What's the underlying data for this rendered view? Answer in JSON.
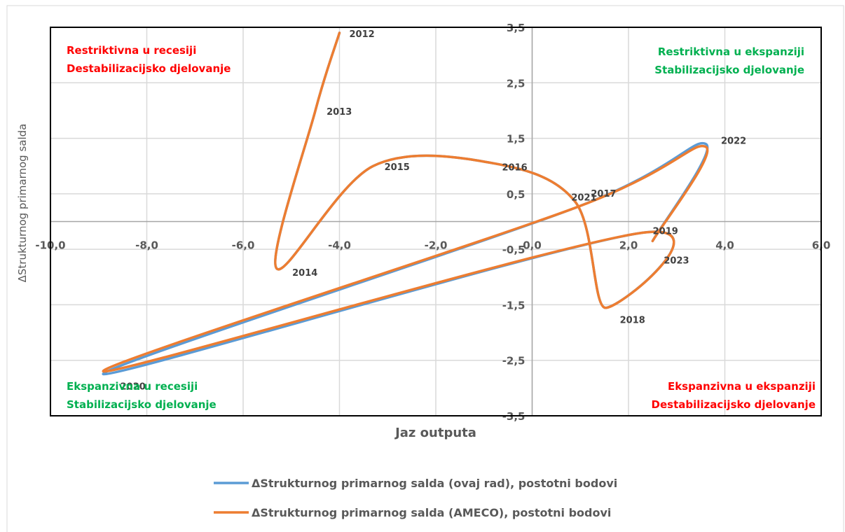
{
  "chart_data": {
    "type": "line",
    "title": "",
    "xlabel": "Jaz outputa",
    "ylabel": "ΔStrukturnog primarnog salda",
    "xlim": [
      -10,
      6
    ],
    "ylim": [
      -3.5,
      3.5
    ],
    "x_ticks": [
      "-10,0",
      "-8,0",
      "-6,0",
      "-4,0",
      "-2,0",
      "0,0",
      "2,0",
      "4,0",
      "6,0"
    ],
    "x_tick_values": [
      -10,
      -8,
      -6,
      -4,
      -2,
      0,
      2,
      4,
      6
    ],
    "y_ticks": [
      "3,5",
      "2,5",
      "1,5",
      "0,5",
      "-0,5",
      "-1,5",
      "-2,5",
      "-3,5"
    ],
    "y_tick_values": [
      3.5,
      2.5,
      1.5,
      0.5,
      -0.5,
      -1.5,
      -2.5,
      -3.5
    ],
    "grid": true,
    "legend_position": "bottom",
    "years": [
      "2012",
      "2013",
      "2014",
      "2015",
      "2016",
      "2017",
      "2018",
      "2019",
      "2020",
      "2021",
      "2022",
      "2023"
    ],
    "series": [
      {
        "name": "ΔStrukturnog primarnog salda (ovaj rad), postotni bodovi",
        "color": "#5B9BD5",
        "x": [
          -4.0,
          -4.5,
          -5.3,
          -3.3,
          -0.8,
          0.9,
          1.5,
          2.3,
          -8.9,
          0.9,
          3.6,
          2.5
        ],
        "y": [
          3.4,
          2.0,
          -0.85,
          1.0,
          1.05,
          0.35,
          -1.55,
          -0.2,
          -2.75,
          0.25,
          1.4,
          -0.35
        ]
      },
      {
        "name": "ΔStrukturnog primarnog salda (AMECO), postotni bodovi",
        "color": "#ED7D31",
        "x": [
          -4.0,
          -4.5,
          -5.3,
          -3.3,
          -0.8,
          0.9,
          1.5,
          2.3,
          -8.9,
          0.9,
          3.6,
          2.5
        ],
        "y": [
          3.4,
          2.0,
          -0.85,
          1.0,
          1.05,
          0.35,
          -1.55,
          -0.2,
          -2.7,
          0.25,
          1.35,
          -0.35
        ]
      }
    ],
    "quadrants": [
      {
        "id": "tl",
        "line1": "Restriktivna u recesiji",
        "line2": "Destabilizacijsko djelovanje",
        "color": "#FF0000"
      },
      {
        "id": "tr",
        "line1": "Restriktivna u ekspanziji",
        "line2": "Stabilizacijsko djelovanje",
        "color": "#00B050"
      },
      {
        "id": "bl",
        "line1": "Ekspanzivna u recesiji",
        "line2": "Stabilizacijsko djelovanje",
        "color": "#00B050"
      },
      {
        "id": "br",
        "line1": "Ekspanzivna u ekspanziji",
        "line2": "Destabilizacijsko djelovanje",
        "color": "#FF0000"
      }
    ]
  }
}
